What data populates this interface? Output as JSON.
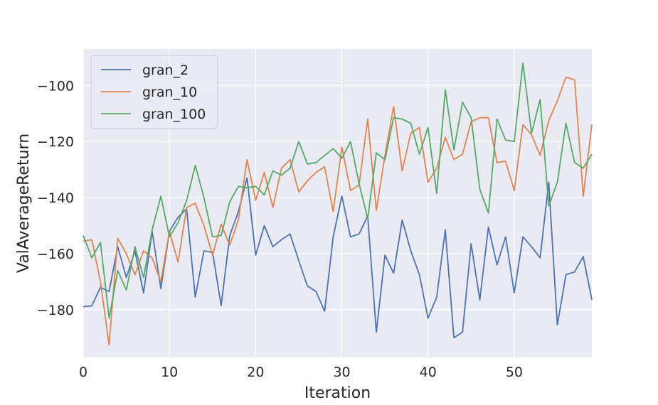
{
  "chart_data": {
    "type": "line",
    "title": "",
    "xlabel": "Iteration",
    "ylabel": "ValAverageReturn",
    "xlim": [
      0,
      59
    ],
    "ylim": [
      -197,
      -87
    ],
    "xticks": [
      0,
      10,
      20,
      30,
      40,
      50
    ],
    "yticks": [
      -180,
      -160,
      -140,
      -120,
      -100
    ],
    "grid": true,
    "legend_position": "top-left",
    "colors": {
      "background": "#eaeaf2",
      "grid": "#ffffff"
    },
    "x": [
      0,
      1,
      2,
      3,
      4,
      5,
      6,
      7,
      8,
      9,
      10,
      11,
      12,
      13,
      14,
      15,
      16,
      17,
      18,
      19,
      20,
      21,
      22,
      23,
      24,
      25,
      26,
      27,
      28,
      29,
      30,
      31,
      32,
      33,
      34,
      35,
      36,
      37,
      38,
      39,
      40,
      41,
      42,
      43,
      44,
      45,
      46,
      47,
      48,
      49,
      50,
      51,
      52,
      53,
      54,
      55,
      56,
      57,
      58,
      59
    ],
    "series": [
      {
        "name": "gran_2",
        "color": "#4c72b0",
        "values": [
          -178.9,
          -178.6,
          -172,
          -173.5,
          -157.5,
          -168.5,
          -159,
          -174,
          -152,
          -172.5,
          -152,
          -147,
          -144,
          -175.5,
          -159,
          -159.5,
          -178.5,
          -153.5,
          -145,
          -133,
          -160.5,
          -150,
          -157.5,
          -155,
          -153,
          -162.5,
          -171.5,
          -173.5,
          -180.5,
          -154,
          -139.5,
          -154,
          -153,
          -146.5,
          -188,
          -160.5,
          -167,
          -148,
          -159,
          -167.5,
          -183,
          -175.5,
          -151.5,
          -190,
          -188,
          -156.5,
          -176.5,
          -150.5,
          -164,
          -154,
          -174,
          -154,
          -157.5,
          -161.5,
          -134.5,
          -185.5,
          -167.5,
          -166.5,
          -161,
          -176.5
        ]
      },
      {
        "name": "gran_10",
        "color": "#dd8452",
        "values": [
          -155.5,
          -155,
          -170,
          -192.5,
          -154.5,
          -160,
          -167.5,
          -159,
          -161.5,
          -170,
          -152,
          -163,
          -143.5,
          -142,
          -150,
          -160.5,
          -149.5,
          -157,
          -148,
          -126.5,
          -141,
          -131,
          -143.5,
          -129.5,
          -126.5,
          -138,
          -134,
          -131,
          -129,
          -145,
          -122,
          -137.5,
          -135.5,
          -112,
          -144.5,
          -125,
          -107.5,
          -130.5,
          -117,
          -115,
          -134.5,
          -129.5,
          -118.5,
          -126.5,
          -124.5,
          -113,
          -111.5,
          -111.5,
          -127.5,
          -127,
          -137.5,
          -114,
          -117.5,
          -125,
          -112.5,
          -105.5,
          -97,
          -98,
          -139.5,
          -114
        ]
      },
      {
        "name": "gran_100",
        "color": "#55a868",
        "values": [
          -153.5,
          -161.5,
          -156,
          -183,
          -166,
          -173,
          -157.5,
          -168.5,
          -151.5,
          -139.5,
          -154,
          -149,
          -141,
          -128.5,
          -140,
          -154,
          -153.5,
          -141.5,
          -136,
          -136.5,
          -136,
          -139,
          -130.5,
          -132,
          -129.5,
          -120,
          -128,
          -127.5,
          -125,
          -122.5,
          -126,
          -120,
          -135,
          -147.5,
          -124,
          -126.5,
          -111.5,
          -112,
          -113.5,
          -124.5,
          -115,
          -138.5,
          -101.5,
          -123,
          -106,
          -111.5,
          -137,
          -145.5,
          -112,
          -119.5,
          -120,
          -92,
          -117,
          -105,
          -143,
          -134.5,
          -113.5,
          -127.5,
          -129.5,
          -124.5
        ]
      }
    ]
  }
}
